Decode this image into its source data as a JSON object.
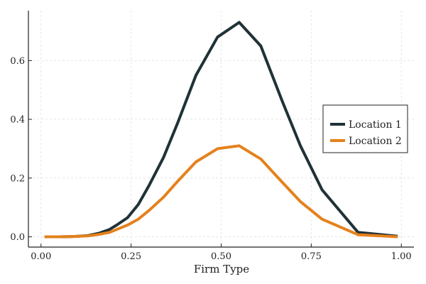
{
  "chart_data": {
    "type": "line",
    "xlabel": "Firm Type",
    "ylabel": "",
    "xlim": [
      -0.035,
      1.035
    ],
    "ylim": [
      -0.035,
      0.77
    ],
    "xticks": [
      0.0,
      0.25,
      0.5,
      0.75,
      1.0
    ],
    "xtick_labels": [
      "0.00",
      "0.25",
      "0.50",
      "0.75",
      "1.00"
    ],
    "yticks": [
      0.0,
      0.2,
      0.4,
      0.6
    ],
    "ytick_labels": [
      "0.0",
      "0.2",
      "0.4",
      "0.6"
    ],
    "grid": true,
    "legend_position": "right",
    "series": [
      {
        "name": "Location 1",
        "color": "#1f3237",
        "x": [
          0.01,
          0.05,
          0.09,
          0.13,
          0.16,
          0.19,
          0.21,
          0.24,
          0.27,
          0.3,
          0.34,
          0.38,
          0.43,
          0.49,
          0.55,
          0.61,
          0.67,
          0.72,
          0.78,
          0.88,
          0.99
        ],
        "y": [
          0.0,
          0.0,
          0.001,
          0.004,
          0.012,
          0.025,
          0.04,
          0.065,
          0.11,
          0.175,
          0.27,
          0.39,
          0.55,
          0.68,
          0.73,
          0.65,
          0.46,
          0.31,
          0.16,
          0.015,
          0.002
        ]
      },
      {
        "name": "Location 2",
        "color": "#e5811c",
        "x": [
          0.01,
          0.05,
          0.09,
          0.13,
          0.16,
          0.19,
          0.21,
          0.24,
          0.27,
          0.3,
          0.34,
          0.38,
          0.43,
          0.49,
          0.55,
          0.61,
          0.67,
          0.72,
          0.78,
          0.88,
          0.99
        ],
        "y": [
          0.0,
          0.0,
          0.001,
          0.003,
          0.008,
          0.015,
          0.025,
          0.04,
          0.06,
          0.09,
          0.135,
          0.19,
          0.255,
          0.3,
          0.31,
          0.265,
          0.185,
          0.12,
          0.06,
          0.007,
          0.0
        ]
      }
    ]
  }
}
